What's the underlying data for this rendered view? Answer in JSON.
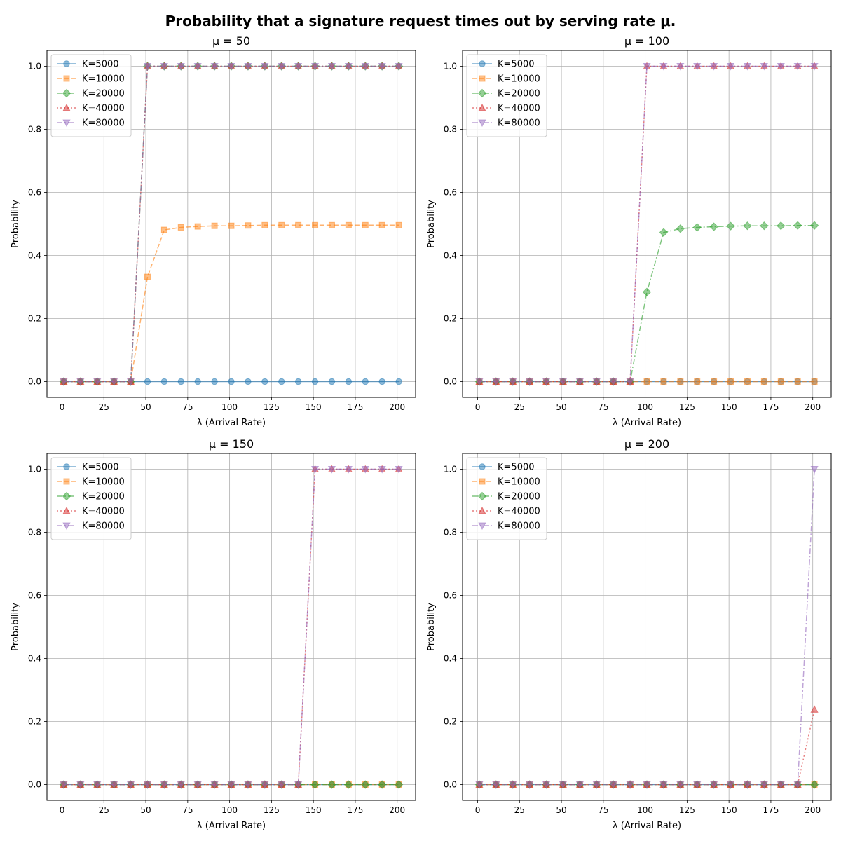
{
  "page_title": "Probability that a signature request times out by serving rate μ.",
  "chart_data": [
    {
      "type": "line",
      "title": "μ = 50",
      "xlabel": "λ (Arrival Rate)",
      "ylabel": "Probability",
      "xlim": [
        -9,
        211
      ],
      "ylim": [
        -0.05,
        1.05
      ],
      "xticks": [
        "0",
        "25",
        "50",
        "75",
        "100",
        "125",
        "150",
        "175",
        "200"
      ],
      "yticks": [
        "0.0",
        "0.2",
        "0.4",
        "0.6",
        "0.8",
        "1.0"
      ],
      "grid": true,
      "legend_position": "top-left",
      "x": [
        1,
        11,
        21,
        31,
        41,
        51,
        61,
        71,
        81,
        91,
        101,
        111,
        121,
        131,
        141,
        151,
        161,
        171,
        181,
        191,
        201
      ],
      "series": [
        {
          "name": "K=5000",
          "color": "#1f77b4",
          "marker": "circle",
          "dash": "solid",
          "values": [
            0,
            0,
            0,
            0,
            0,
            0,
            0,
            0,
            0,
            0,
            0,
            0,
            0,
            0,
            0,
            0,
            0,
            0,
            0,
            0,
            0
          ]
        },
        {
          "name": "K=10000",
          "color": "#ff7f0e",
          "marker": "square",
          "dash": "dashed",
          "values": [
            0,
            0,
            0,
            0,
            0,
            0.332,
            0.481,
            0.489,
            0.492,
            0.494,
            0.494,
            0.495,
            0.496,
            0.496,
            0.496,
            0.496,
            0.496,
            0.496,
            0.496,
            0.496,
            0.496
          ]
        },
        {
          "name": "K=20000",
          "color": "#2ca02c",
          "marker": "diamond",
          "dash": "dashdot",
          "values": [
            0,
            0,
            0,
            0,
            0,
            1,
            1,
            1,
            1,
            1,
            1,
            1,
            1,
            1,
            1,
            1,
            1,
            1,
            1,
            1,
            1
          ]
        },
        {
          "name": "K=40000",
          "color": "#d62728",
          "marker": "triangle-up",
          "dash": "dotted",
          "values": [
            0,
            0,
            0,
            0,
            0,
            1,
            1,
            1,
            1,
            1,
            1,
            1,
            1,
            1,
            1,
            1,
            1,
            1,
            1,
            1,
            1
          ]
        },
        {
          "name": "K=80000",
          "color": "#9467bd",
          "marker": "triangle-down",
          "dash": "dashdot",
          "values": [
            0,
            0,
            0,
            0,
            0,
            1,
            1,
            1,
            1,
            1,
            1,
            1,
            1,
            1,
            1,
            1,
            1,
            1,
            1,
            1,
            1
          ]
        }
      ]
    },
    {
      "type": "line",
      "title": "μ = 100",
      "xlabel": "λ (Arrival Rate)",
      "ylabel": "Probability",
      "xlim": [
        -9,
        211
      ],
      "ylim": [
        -0.05,
        1.05
      ],
      "xticks": [
        "0",
        "25",
        "50",
        "75",
        "100",
        "125",
        "150",
        "175",
        "200"
      ],
      "yticks": [
        "0.0",
        "0.2",
        "0.4",
        "0.6",
        "0.8",
        "1.0"
      ],
      "grid": true,
      "legend_position": "top-left",
      "x": [
        1,
        11,
        21,
        31,
        41,
        51,
        61,
        71,
        81,
        91,
        101,
        111,
        121,
        131,
        141,
        151,
        161,
        171,
        181,
        191,
        201
      ],
      "series": [
        {
          "name": "K=5000",
          "color": "#1f77b4",
          "marker": "circle",
          "dash": "solid",
          "values": [
            0,
            0,
            0,
            0,
            0,
            0,
            0,
            0,
            0,
            0,
            0,
            0,
            0,
            0,
            0,
            0,
            0,
            0,
            0,
            0,
            0
          ]
        },
        {
          "name": "K=10000",
          "color": "#ff7f0e",
          "marker": "square",
          "dash": "dashed",
          "values": [
            0,
            0,
            0,
            0,
            0,
            0,
            0,
            0,
            0,
            0,
            0,
            0,
            0,
            0,
            0,
            0,
            0,
            0,
            0,
            0,
            0
          ]
        },
        {
          "name": "K=20000",
          "color": "#2ca02c",
          "marker": "diamond",
          "dash": "dashdot",
          "values": [
            0,
            0,
            0,
            0,
            0,
            0,
            0,
            0,
            0,
            0,
            0.284,
            0.473,
            0.485,
            0.489,
            0.491,
            0.493,
            0.494,
            0.494,
            0.494,
            0.495,
            0.495
          ]
        },
        {
          "name": "K=40000",
          "color": "#d62728",
          "marker": "triangle-up",
          "dash": "dotted",
          "values": [
            0,
            0,
            0,
            0,
            0,
            0,
            0,
            0,
            0,
            0,
            1,
            1,
            1,
            1,
            1,
            1,
            1,
            1,
            1,
            1,
            1
          ]
        },
        {
          "name": "K=80000",
          "color": "#9467bd",
          "marker": "triangle-down",
          "dash": "dashdot",
          "values": [
            0,
            0,
            0,
            0,
            0,
            0,
            0,
            0,
            0,
            0,
            1,
            1,
            1,
            1,
            1,
            1,
            1,
            1,
            1,
            1,
            1
          ]
        }
      ]
    },
    {
      "type": "line",
      "title": "μ = 150",
      "xlabel": "λ (Arrival Rate)",
      "ylabel": "Probability",
      "xlim": [
        -9,
        211
      ],
      "ylim": [
        -0.05,
        1.05
      ],
      "xticks": [
        "0",
        "25",
        "50",
        "75",
        "100",
        "125",
        "150",
        "175",
        "200"
      ],
      "yticks": [
        "0.0",
        "0.2",
        "0.4",
        "0.6",
        "0.8",
        "1.0"
      ],
      "grid": true,
      "legend_position": "top-left",
      "x": [
        1,
        11,
        21,
        31,
        41,
        51,
        61,
        71,
        81,
        91,
        101,
        111,
        121,
        131,
        141,
        151,
        161,
        171,
        181,
        191,
        201
      ],
      "series": [
        {
          "name": "K=5000",
          "color": "#1f77b4",
          "marker": "circle",
          "dash": "solid",
          "values": [
            0,
            0,
            0,
            0,
            0,
            0,
            0,
            0,
            0,
            0,
            0,
            0,
            0,
            0,
            0,
            0,
            0,
            0,
            0,
            0,
            0
          ]
        },
        {
          "name": "K=10000",
          "color": "#ff7f0e",
          "marker": "square",
          "dash": "dashed",
          "values": [
            0,
            0,
            0,
            0,
            0,
            0,
            0,
            0,
            0,
            0,
            0,
            0,
            0,
            0,
            0,
            0,
            0,
            0,
            0,
            0,
            0
          ]
        },
        {
          "name": "K=20000",
          "color": "#2ca02c",
          "marker": "diamond",
          "dash": "dashdot",
          "values": [
            0,
            0,
            0,
            0,
            0,
            0,
            0,
            0,
            0,
            0,
            0,
            0,
            0,
            0,
            0,
            0,
            0,
            0,
            0,
            0,
            0
          ]
        },
        {
          "name": "K=40000",
          "color": "#d62728",
          "marker": "triangle-up",
          "dash": "dotted",
          "values": [
            0,
            0,
            0,
            0,
            0,
            0,
            0,
            0,
            0,
            0,
            0,
            0,
            0,
            0,
            0,
            1,
            1,
            1,
            1,
            1,
            1
          ]
        },
        {
          "name": "K=80000",
          "color": "#9467bd",
          "marker": "triangle-down",
          "dash": "dashdot",
          "values": [
            0,
            0,
            0,
            0,
            0,
            0,
            0,
            0,
            0,
            0,
            0,
            0,
            0,
            0,
            0,
            1,
            1,
            1,
            1,
            1,
            1
          ]
        }
      ]
    },
    {
      "type": "line",
      "title": "μ = 200",
      "xlabel": "λ (Arrival Rate)",
      "ylabel": "Probability",
      "xlim": [
        -9,
        211
      ],
      "ylim": [
        -0.05,
        1.05
      ],
      "xticks": [
        "0",
        "25",
        "50",
        "75",
        "100",
        "125",
        "150",
        "175",
        "200"
      ],
      "yticks": [
        "0.0",
        "0.2",
        "0.4",
        "0.6",
        "0.8",
        "1.0"
      ],
      "grid": true,
      "legend_position": "top-left",
      "x": [
        1,
        11,
        21,
        31,
        41,
        51,
        61,
        71,
        81,
        91,
        101,
        111,
        121,
        131,
        141,
        151,
        161,
        171,
        181,
        191,
        201
      ],
      "series": [
        {
          "name": "K=5000",
          "color": "#1f77b4",
          "marker": "circle",
          "dash": "solid",
          "values": [
            0,
            0,
            0,
            0,
            0,
            0,
            0,
            0,
            0,
            0,
            0,
            0,
            0,
            0,
            0,
            0,
            0,
            0,
            0,
            0,
            0
          ]
        },
        {
          "name": "K=10000",
          "color": "#ff7f0e",
          "marker": "square",
          "dash": "dashed",
          "values": [
            0,
            0,
            0,
            0,
            0,
            0,
            0,
            0,
            0,
            0,
            0,
            0,
            0,
            0,
            0,
            0,
            0,
            0,
            0,
            0,
            0
          ]
        },
        {
          "name": "K=20000",
          "color": "#2ca02c",
          "marker": "diamond",
          "dash": "dashdot",
          "values": [
            0,
            0,
            0,
            0,
            0,
            0,
            0,
            0,
            0,
            0,
            0,
            0,
            0,
            0,
            0,
            0,
            0,
            0,
            0,
            0,
            0
          ]
        },
        {
          "name": "K=40000",
          "color": "#d62728",
          "marker": "triangle-up",
          "dash": "dotted",
          "values": [
            0,
            0,
            0,
            0,
            0,
            0,
            0,
            0,
            0,
            0,
            0,
            0,
            0,
            0,
            0,
            0,
            0,
            0,
            0,
            0,
            0.238
          ]
        },
        {
          "name": "K=80000",
          "color": "#9467bd",
          "marker": "triangle-down",
          "dash": "dashdot",
          "values": [
            0,
            0,
            0,
            0,
            0,
            0,
            0,
            0,
            0,
            0,
            0,
            0,
            0,
            0,
            0,
            0,
            0,
            0,
            0,
            0,
            1
          ]
        }
      ]
    }
  ]
}
